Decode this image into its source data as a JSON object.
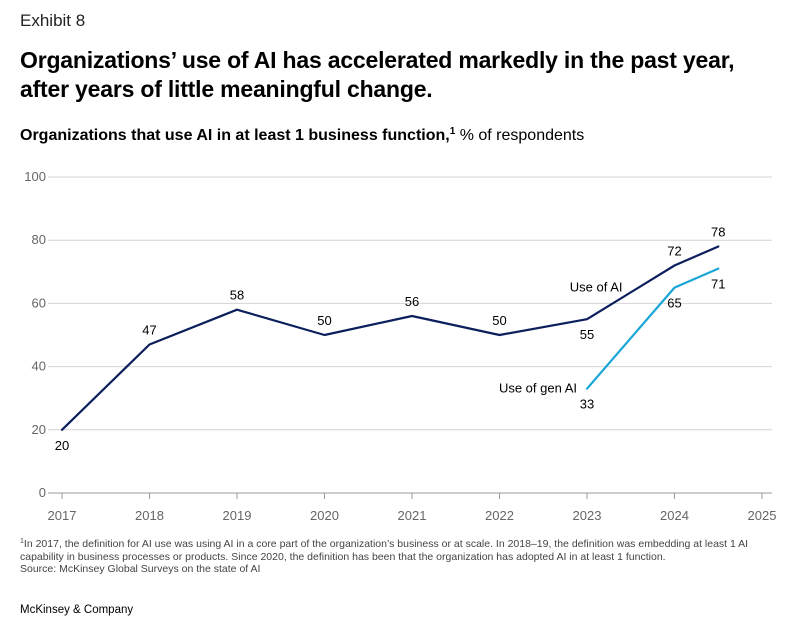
{
  "exhibit": "Exhibit 8",
  "headline": "Organizations’ use of AI has accelerated markedly in the past year, after years of little meaningful change.",
  "subtitle": {
    "bold": "Organizations that use AI in at least 1 business function,",
    "sup": "1",
    "rest": " % of respondents"
  },
  "footnote": {
    "marker": "1",
    "text": "In 2017, the definition for AI use was using AI in a core part of the organization’s business or at scale. In 2018–19, the definition was embedding at least 1 AI capability in business processes or products. Since 2020, the definition has been that the organization has adopted AI in at least 1 function.",
    "source": "Source: McKinsey Global Surveys on the state of AI"
  },
  "brand": "McKinsey & Company",
  "colors": {
    "use_of_ai": "#0b1f5c",
    "use_of_gen_ai": "#1aa6d6",
    "grid": "#d4d4d4",
    "axis": "#999999"
  },
  "chart_data": {
    "type": "line",
    "title": "Organizations that use AI in at least 1 business function",
    "ylabel": "% of respondents",
    "xlim": [
      2017,
      2025
    ],
    "ylim": [
      0,
      100
    ],
    "x_ticks": [
      "2017",
      "2018",
      "2019",
      "2020",
      "2021",
      "2022",
      "2023",
      "2024",
      "2025"
    ],
    "y_ticks": [
      0,
      20,
      40,
      60,
      80,
      100
    ],
    "grid": "horizontal",
    "series": [
      {
        "name": "Use of AI",
        "points": [
          {
            "x": 2017,
            "y": 20
          },
          {
            "x": 2018,
            "y": 47
          },
          {
            "x": 2019,
            "y": 58
          },
          {
            "x": 2020,
            "y": 50
          },
          {
            "x": 2021,
            "y": 56
          },
          {
            "x": 2022,
            "y": 50
          },
          {
            "x": 2023,
            "y": 55
          },
          {
            "x": 2024,
            "y": 72
          },
          {
            "x": 2024.5,
            "y": 78
          }
        ]
      },
      {
        "name": "Use of gen AI",
        "points": [
          {
            "x": 2023,
            "y": 33
          },
          {
            "x": 2024,
            "y": 65
          },
          {
            "x": 2024.5,
            "y": 71
          }
        ]
      }
    ]
  }
}
